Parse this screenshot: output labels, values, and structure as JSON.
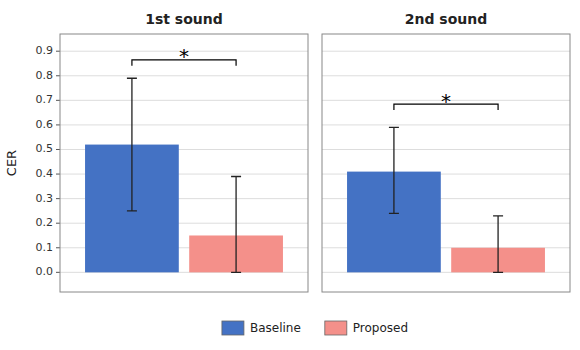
{
  "chart_data": [
    {
      "type": "bar",
      "title": "1st sound",
      "categories": [
        null
      ],
      "series": [
        {
          "name": "Baseline",
          "color": "#4472C4",
          "values": [
            0.52
          ],
          "errors_lower": [
            0.27
          ],
          "errors_upper": [
            0.27
          ]
        },
        {
          "name": "Proposed",
          "color": "#F4908A",
          "values": [
            0.15
          ],
          "errors_lower": [
            0.15
          ],
          "errors_upper": [
            0.24
          ]
        }
      ],
      "ylabel": "CER",
      "ylim": [
        -0.08,
        0.97
      ],
      "yticks": [
        {
          "value": 0.0,
          "label": "0.0"
        },
        0.1,
        0.2,
        0.3,
        0.4,
        0.5,
        0.6,
        0.7,
        0.8,
        0.9
      ],
      "grid": true,
      "tick_labels": "y",
      "legend": "bottom",
      "annotations": [
        {
          "text": "*",
          "y": 0.875,
          "bracket_y": 0.865
        }
      ]
    },
    {
      "type": "bar",
      "title": "2nd sound",
      "categories": [
        null
      ],
      "series": [
        {
          "name": "Baseline",
          "color": "#4472C4",
          "values": [
            0.41
          ],
          "errors_lower": [
            0.17
          ],
          "errors_upper": [
            0.18
          ]
        },
        {
          "name": "Proposed",
          "color": "#F4908A",
          "values": [
            0.1
          ],
          "errors_lower": [
            0.1
          ],
          "errors_upper": [
            0.13
          ]
        }
      ],
      "ylim": [
        -0.08,
        0.97
      ],
      "yticks": [
        0.0,
        0.1,
        0.2,
        0.3,
        0.4,
        0.5,
        0.6,
        0.7,
        0.8,
        0.9
      ],
      "grid": true,
      "tick_labels": false,
      "annotations": [
        {
          "text": "*",
          "y": 0.695,
          "bracket_y": 0.685
        }
      ]
    }
  ]
}
